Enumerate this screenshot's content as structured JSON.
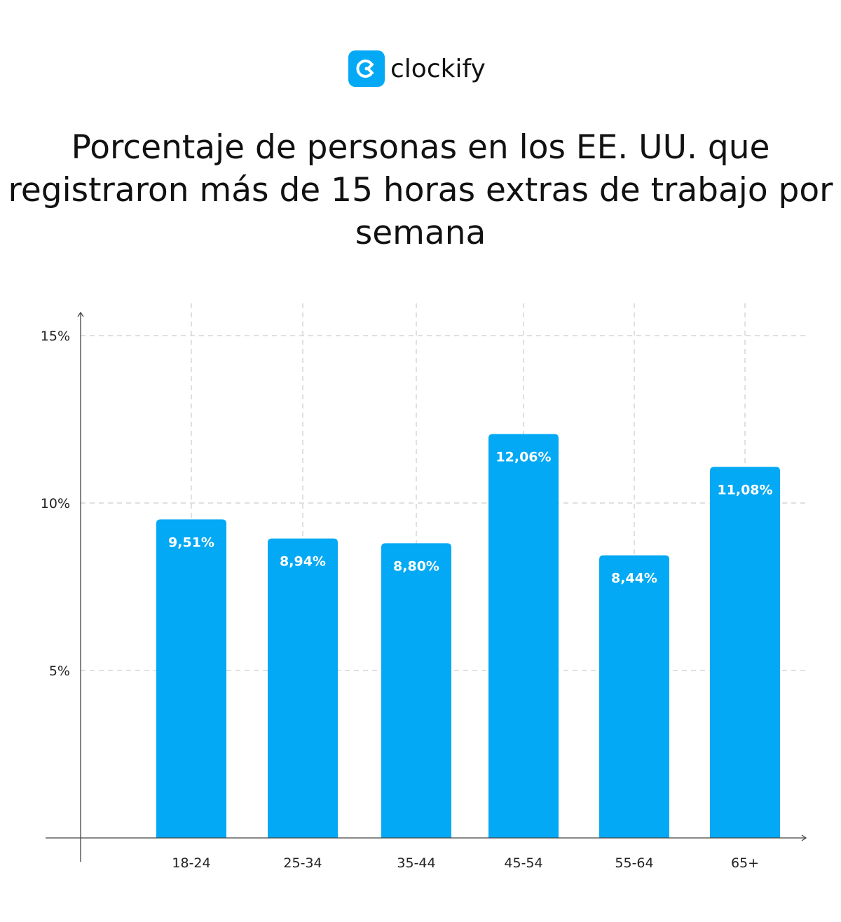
{
  "logo": {
    "text": "clockify",
    "color": "#03a9f4"
  },
  "chart_data": {
    "type": "bar",
    "title": "Porcentaje de personas en los EE. UU. que registraron más de 15 horas extras de trabajo por semana",
    "categories": [
      "18-24",
      "25-34",
      "35-44",
      "45-54",
      "55-64",
      "65+"
    ],
    "values": [
      9.51,
      8.94,
      8.8,
      12.06,
      8.44,
      11.08
    ],
    "data_labels": [
      "9,51%",
      "8,94%",
      "8,80%",
      "12,06%",
      "8,44%",
      "11,08%"
    ],
    "yticks": [
      5,
      10,
      15
    ],
    "ytick_labels": [
      "5%",
      "10%",
      "15%"
    ],
    "ylim": [
      0,
      15.7
    ],
    "xlabel": "",
    "ylabel": "",
    "grid": true,
    "bar_color": "#03a9f4"
  }
}
